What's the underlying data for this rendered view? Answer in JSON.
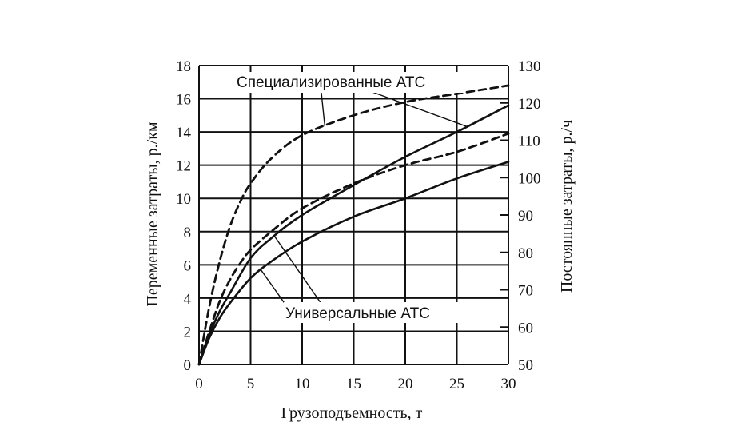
{
  "chart_data": {
    "type": "line",
    "xlabel": "Грузоподъемность, т",
    "ylabel_left": "Переменные затраты, р./км",
    "ylabel_right": "Постоянные затраты, р./ч",
    "xlim": [
      0,
      30
    ],
    "ylim_left": [
      0,
      18
    ],
    "ylim_right": [
      50,
      130
    ],
    "x_ticks": [
      "0",
      "5",
      "10",
      "15",
      "20",
      "25",
      "30"
    ],
    "y_ticks_left": [
      "0",
      "2",
      "4",
      "6",
      "8",
      "10",
      "12",
      "14",
      "16",
      "18"
    ],
    "y_ticks_right": [
      "50",
      "60",
      "70",
      "80",
      "90",
      "100",
      "110",
      "120",
      "130"
    ],
    "grid": true,
    "annotations": {
      "specialized": "Специализированные АТС",
      "universal": "Универсальные АТС"
    },
    "series": [
      {
        "group": "specialized",
        "style": "dashed",
        "x": [
          0,
          1,
          2,
          3,
          4,
          5,
          7,
          10,
          15,
          20,
          25,
          30
        ],
        "y": [
          0,
          3.5,
          6.2,
          8.3,
          9.8,
          10.9,
          12.4,
          13.8,
          15.0,
          15.8,
          16.3,
          16.8
        ]
      },
      {
        "group": "specialized",
        "style": "dashed",
        "x": [
          0,
          1,
          2,
          3,
          4,
          5,
          7,
          10,
          15,
          20,
          25,
          30
        ],
        "y": [
          0,
          2.0,
          3.8,
          5.1,
          6.1,
          6.9,
          8.0,
          9.4,
          10.9,
          12.0,
          12.8,
          13.9
        ]
      },
      {
        "group": "universal",
        "style": "solid",
        "x": [
          0,
          1,
          2,
          3,
          5,
          7,
          10,
          15,
          20,
          25,
          30
        ],
        "y": [
          0,
          1.8,
          3.2,
          4.3,
          6.4,
          7.6,
          9.0,
          10.8,
          12.5,
          14.0,
          15.6
        ]
      },
      {
        "group": "universal",
        "style": "solid",
        "x": [
          0,
          1,
          2,
          3,
          5,
          7,
          10,
          15,
          20,
          25,
          30
        ],
        "y": [
          0,
          1.6,
          2.8,
          3.7,
          5.2,
          6.2,
          7.4,
          8.9,
          10.0,
          11.2,
          12.2
        ]
      }
    ]
  }
}
